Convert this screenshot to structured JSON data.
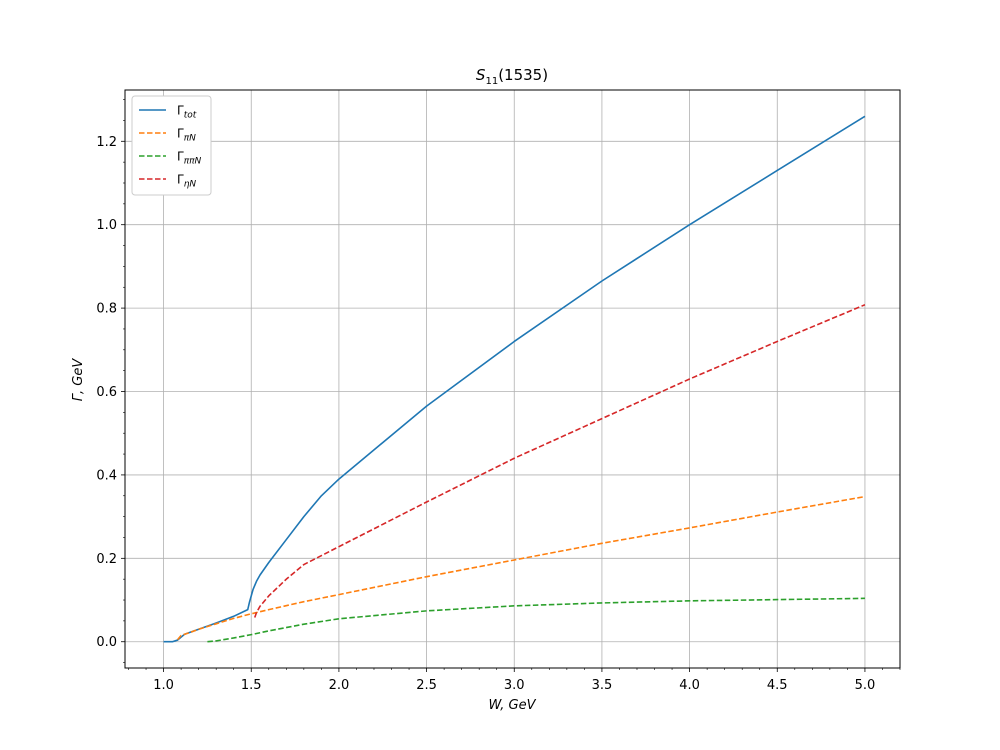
{
  "chart_data": {
    "type": "line",
    "title_main": "S",
    "title_sub": "11",
    "title_rest": "(1535)",
    "xlabel": "W, GeV",
    "ylabel": "Γ, GeV",
    "xlim": [
      0.78,
      5.2
    ],
    "ylim": [
      -0.063,
      1.323
    ],
    "xticks": [
      1.0,
      1.5,
      2.0,
      2.5,
      3.0,
      3.5,
      4.0,
      4.5,
      5.0
    ],
    "xtick_labels": [
      "1.0",
      "1.5",
      "2.0",
      "2.5",
      "3.0",
      "3.5",
      "4.0",
      "4.5",
      "5.0"
    ],
    "yticks": [
      0.0,
      0.2,
      0.4,
      0.6,
      0.8,
      1.0,
      1.2
    ],
    "ytick_labels": [
      "0.0",
      "0.2",
      "0.4",
      "0.6",
      "0.8",
      "1.0",
      "1.2"
    ],
    "grid": true,
    "legend_position": "upper-left",
    "series": [
      {
        "name": "Γ",
        "name_sub": "tot",
        "color": "#1f77b4",
        "dashed": false,
        "x": [
          1.0,
          1.05,
          1.08,
          1.12,
          1.2,
          1.3,
          1.4,
          1.48,
          1.49,
          1.51,
          1.53,
          1.55,
          1.6,
          1.7,
          1.8,
          1.9,
          2.0,
          2.2,
          2.5,
          3.0,
          3.5,
          4.0,
          4.5,
          5.0
        ],
        "y": [
          0.0,
          0.0,
          0.004,
          0.018,
          0.03,
          0.045,
          0.061,
          0.077,
          0.095,
          0.125,
          0.145,
          0.16,
          0.19,
          0.245,
          0.3,
          0.35,
          0.39,
          0.46,
          0.565,
          0.72,
          0.865,
          1.0,
          1.13,
          1.26
        ]
      },
      {
        "name": "Γ",
        "name_sub": "πN",
        "color": "#ff7f0e",
        "dashed": true,
        "x": [
          1.08,
          1.1,
          1.15,
          1.2,
          1.3,
          1.4,
          1.5,
          1.6,
          1.8,
          2.0,
          2.5,
          3.0,
          3.5,
          4.0,
          4.5,
          5.0
        ],
        "y": [
          0.005,
          0.015,
          0.022,
          0.03,
          0.043,
          0.056,
          0.067,
          0.077,
          0.096,
          0.113,
          0.156,
          0.196,
          0.236,
          0.273,
          0.311,
          0.348
        ]
      },
      {
        "name": "Γ",
        "name_sub": "ππN",
        "color": "#2ca02c",
        "dashed": true,
        "x": [
          1.25,
          1.3,
          1.4,
          1.5,
          1.6,
          1.8,
          2.0,
          2.5,
          3.0,
          3.5,
          4.0,
          4.5,
          5.0
        ],
        "y": [
          0.0,
          0.002,
          0.009,
          0.017,
          0.026,
          0.042,
          0.055,
          0.074,
          0.086,
          0.093,
          0.098,
          0.101,
          0.104
        ]
      },
      {
        "name": "Γ",
        "name_sub": "ηN",
        "color": "#d62728",
        "dashed": true,
        "x": [
          1.52,
          1.53,
          1.55,
          1.6,
          1.7,
          1.8,
          2.0,
          2.5,
          3.0,
          3.5,
          4.0,
          4.5,
          5.0
        ],
        "y": [
          0.058,
          0.07,
          0.085,
          0.11,
          0.15,
          0.185,
          0.228,
          0.335,
          0.44,
          0.535,
          0.63,
          0.72,
          0.808
        ]
      }
    ]
  }
}
